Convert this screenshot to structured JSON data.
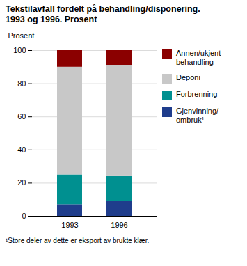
{
  "chart_data": {
    "type": "bar",
    "stacked": true,
    "title": "Tekstilavfall fordelt på behandling/disponering.",
    "subtitle": "1993 og 1996. Prosent",
    "y_label": "Prosent",
    "categories": [
      "1993",
      "1996"
    ],
    "series": [
      {
        "name": "Gjenvinning/\nombruk¹",
        "color": "#1f3d8c",
        "values": [
          7,
          9
        ]
      },
      {
        "name": "Forbrenning",
        "color": "#009090",
        "values": [
          18,
          15
        ]
      },
      {
        "name": "Deponi",
        "color": "#c8c8c8",
        "values": [
          65,
          67
        ]
      },
      {
        "name": "Annen/ukjent\nbehandling",
        "color": "#8b0000",
        "values": [
          10,
          9
        ]
      }
    ],
    "ylim": [
      0,
      100
    ],
    "yticks": [
      0,
      20,
      40,
      60,
      80,
      100
    ],
    "grid": true,
    "legend": "right",
    "footnote": "¹Store deler av dette er eksport av brukte klær."
  }
}
